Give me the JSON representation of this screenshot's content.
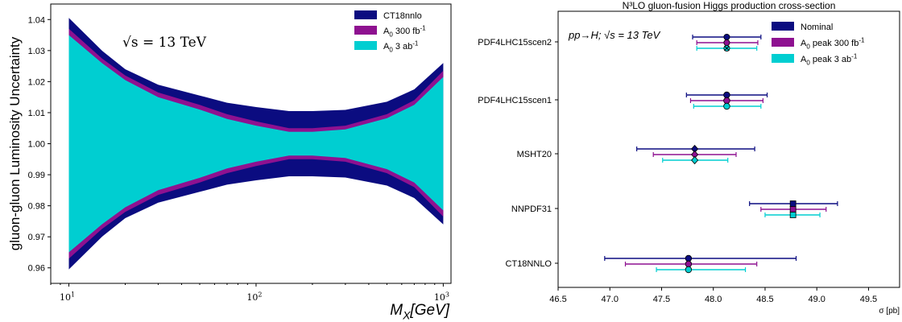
{
  "colors": {
    "navy": "#0b0c80",
    "purple": "#8e1190",
    "cyan": "#00ced1"
  },
  "chart_data": [
    {
      "type": "area",
      "title": "",
      "xlabel": "M_X[GeV]",
      "ylabel": "gluon-gluon Luminosity Uncertainty",
      "xscale": "log",
      "xlim": [
        8,
        1100
      ],
      "ylim": [
        0.955,
        1.045
      ],
      "xticks": [
        10,
        100,
        1000
      ],
      "xtick_labels": [
        "10^1",
        "10^2",
        "10^3"
      ],
      "yticks": [
        0.96,
        0.97,
        0.98,
        0.99,
        1.0,
        1.01,
        1.02,
        1.03,
        1.04
      ],
      "ytick_labels": [
        "0.96",
        "0.97",
        "0.98",
        "0.99",
        "1.00",
        "1.01",
        "1.02",
        "1.03",
        "1.04"
      ],
      "annotation": "√s = 13 TeV",
      "legend_position": "top-right",
      "grid": false,
      "x": [
        10,
        15,
        20,
        30,
        50,
        70,
        100,
        150,
        200,
        300,
        500,
        700,
        1000
      ],
      "series": [
        {
          "name": "CT18nnlo",
          "color": "navy",
          "upper": [
            1.0405,
            1.03,
            1.024,
            1.019,
            1.0155,
            1.0132,
            1.0118,
            1.0105,
            1.0105,
            1.0109,
            1.0135,
            1.0175,
            1.026
          ],
          "lower": [
            0.9595,
            0.97,
            0.976,
            0.981,
            0.9845,
            0.9868,
            0.9882,
            0.9895,
            0.9895,
            0.9891,
            0.9865,
            0.9825,
            0.974
          ]
        },
        {
          "name": "A_0 300 fb^-1",
          "color": "purple",
          "upper": [
            1.037,
            1.0275,
            1.022,
            1.0165,
            1.0125,
            1.0095,
            1.0072,
            1.005,
            1.005,
            1.0058,
            1.0095,
            1.014,
            1.0235
          ],
          "lower": [
            0.963,
            0.9725,
            0.978,
            0.9835,
            0.9875,
            0.9905,
            0.9928,
            0.995,
            0.995,
            0.9942,
            0.9905,
            0.986,
            0.9765
          ]
        },
        {
          "name": "A_0 3 ab^-1",
          "color": "cyan",
          "upper": [
            1.035,
            1.026,
            1.0205,
            1.015,
            1.011,
            1.008,
            1.0058,
            1.0038,
            1.0038,
            1.0046,
            1.0082,
            1.0125,
            1.0215
          ],
          "lower": [
            0.965,
            0.974,
            0.9795,
            0.985,
            0.989,
            0.992,
            0.9942,
            0.9962,
            0.9962,
            0.9954,
            0.9918,
            0.9875,
            0.9785
          ]
        }
      ]
    },
    {
      "type": "scatter",
      "title": "N³LO gluon-fusion Higgs production cross-section",
      "xlabel": "σ [pb]",
      "ylabel": "",
      "xlim": [
        46.5,
        49.8
      ],
      "xticks": [
        46.5,
        47.0,
        47.5,
        48.0,
        48.5,
        49.0,
        49.5
      ],
      "xtick_labels": [
        "46.5",
        "47.0",
        "47.5",
        "48.0",
        "48.5",
        "49.0",
        "49.5"
      ],
      "annotation": "pp→H; √s = 13 TeV",
      "legend_position": "top-right",
      "grid": false,
      "categories": [
        "PDF4LHC15scen2",
        "PDF4LHC15scen1",
        "MSHT20",
        "NNPDF31",
        "CT18NNLO"
      ],
      "markers": [
        "x",
        "o",
        "D",
        "s",
        "o"
      ],
      "series": [
        {
          "name": "Nominal",
          "color": "navy",
          "values": [
            48.13,
            48.13,
            47.82,
            48.77,
            47.76
          ],
          "err_low": [
            47.8,
            47.74,
            47.26,
            48.35,
            46.95
          ],
          "err_high": [
            48.46,
            48.52,
            48.4,
            49.2,
            48.8
          ]
        },
        {
          "name": "A_0 peak 300 fb^-1",
          "color": "purple",
          "values": [
            48.13,
            48.13,
            47.82,
            48.77,
            47.76
          ],
          "err_low": [
            47.84,
            47.78,
            47.42,
            48.46,
            47.15
          ],
          "err_high": [
            48.43,
            48.48,
            48.22,
            49.09,
            48.42
          ]
        },
        {
          "name": "A_0 peak 3 ab^-1",
          "color": "cyan",
          "values": [
            48.13,
            48.13,
            47.82,
            48.77,
            47.76
          ],
          "err_low": [
            47.84,
            47.81,
            47.51,
            48.5,
            47.45
          ],
          "err_high": [
            48.42,
            48.46,
            48.14,
            49.03,
            48.31
          ]
        }
      ]
    }
  ]
}
